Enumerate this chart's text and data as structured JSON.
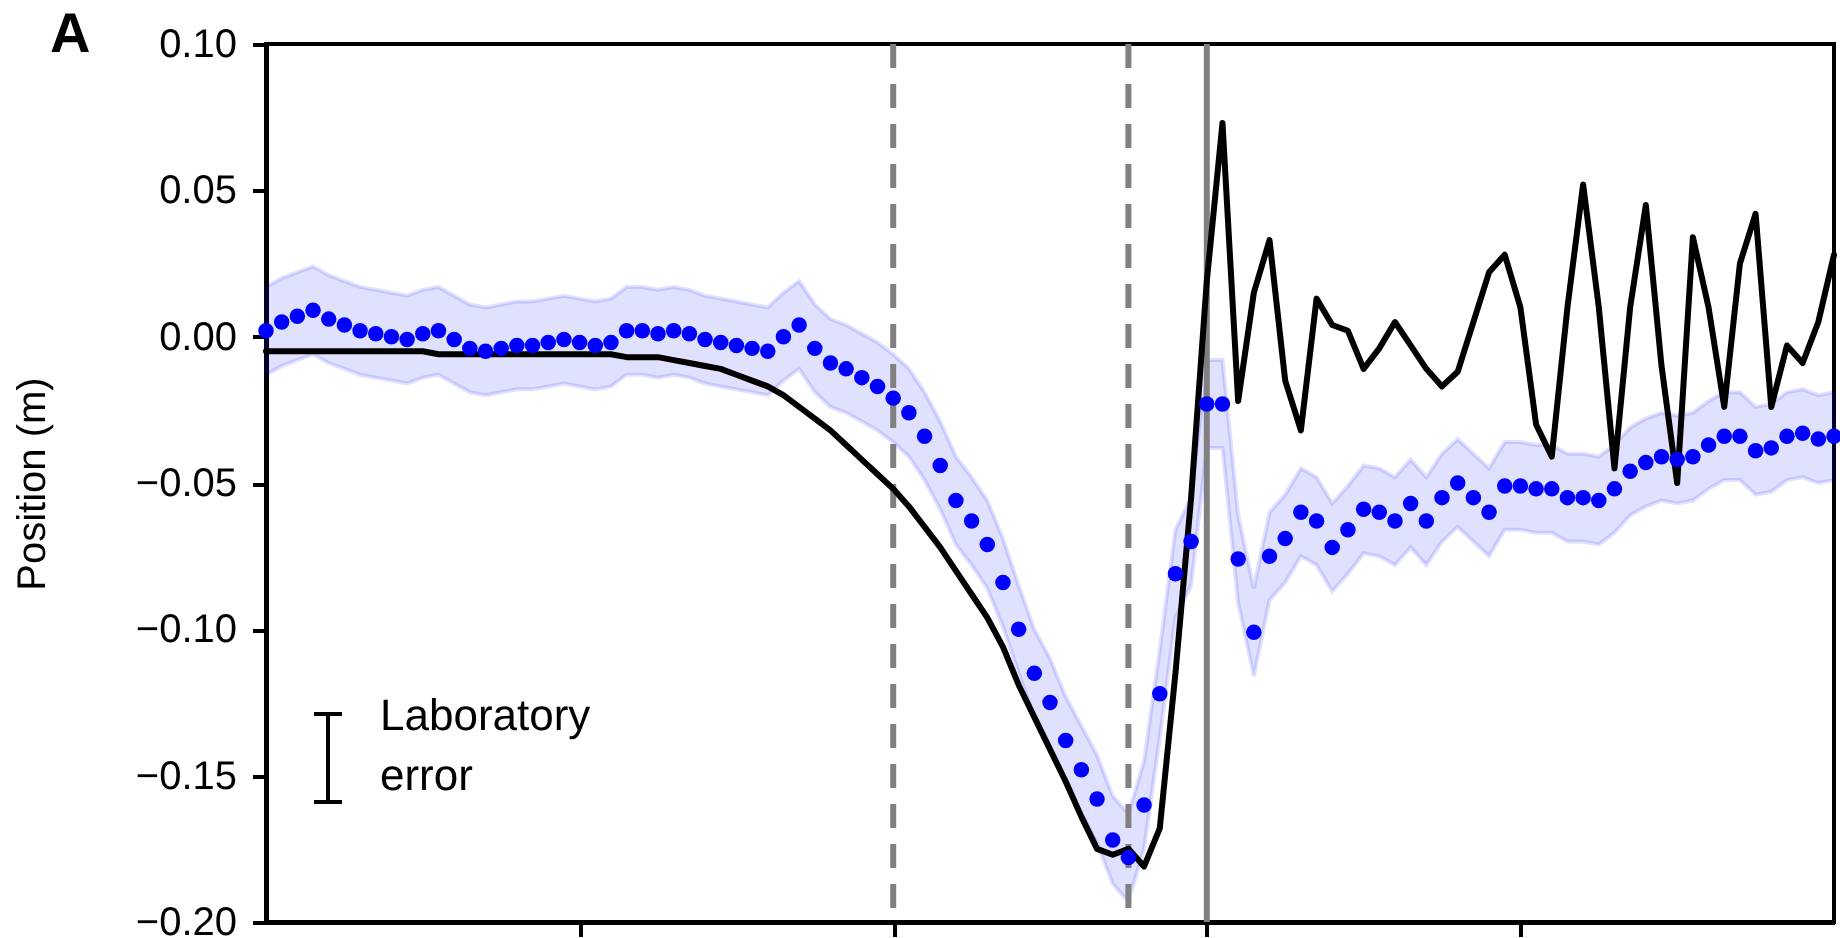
{
  "chart_data": {
    "type": "line",
    "title": "A",
    "ylabel": "Position (m)",
    "categories": [
      null,
      null,
      null,
      null,
      null,
      null,
      null,
      null,
      null,
      null,
      null,
      null,
      null,
      null,
      null,
      null,
      null,
      null,
      null,
      null,
      null,
      null,
      null,
      null,
      null,
      null,
      null,
      null,
      null,
      null,
      null,
      null,
      null,
      null,
      null,
      null,
      null,
      null,
      null,
      null,
      null,
      null,
      null,
      null,
      null,
      null,
      null,
      null,
      null,
      null,
      null,
      null,
      null,
      null,
      null,
      null,
      null,
      null,
      null,
      null,
      null,
      null,
      null,
      null,
      null,
      null,
      null,
      null,
      null,
      null,
      null,
      null,
      null,
      null,
      null,
      null,
      null,
      null,
      null,
      null,
      null,
      null,
      null,
      null,
      null,
      null,
      null,
      null,
      null,
      null,
      null,
      null,
      null,
      null,
      null,
      null,
      null,
      null,
      null,
      null,
      null
    ],
    "ylim": [
      -0.2,
      0.1
    ],
    "yticks": [
      {
        "value": -0.2,
        "label": "−0.20"
      },
      {
        "value": -0.15,
        "label": "−0.15"
      },
      {
        "value": -0.1,
        "label": "−0.10"
      },
      {
        "value": -0.05,
        "label": "−0.05"
      },
      {
        "value": 0,
        "label": "0.00"
      },
      {
        "value": 0.05,
        "label": "0.05"
      },
      {
        "value": 0.1,
        "label": "0.10"
      }
    ],
    "tick_labels": "y",
    "grid": false,
    "annotations": [
      "Laboratory error"
    ],
    "series": [
      {
        "color": "#000000",
        "values": [
          -0.005,
          -0.005,
          -0.005,
          -0.005,
          -0.005,
          -0.005,
          -0.005,
          -0.005,
          -0.005,
          -0.005,
          -0.005,
          -0.006,
          -0.006,
          -0.006,
          -0.006,
          -0.006,
          -0.006,
          -0.006,
          -0.006,
          -0.006,
          -0.006,
          -0.006,
          -0.006,
          -0.007,
          -0.007,
          -0.007,
          -0.008,
          -0.009,
          -0.01,
          -0.011,
          -0.013,
          -0.015,
          -0.017,
          -0.02,
          -0.024,
          -0.028,
          -0.032,
          -0.037,
          -0.042,
          -0.047,
          -0.052,
          -0.058,
          -0.065,
          -0.072,
          -0.08,
          -0.088,
          -0.096,
          -0.106,
          -0.119,
          -0.13,
          -0.141,
          -0.152,
          -0.164,
          -0.175,
          -0.177,
          -0.175,
          -0.181,
          -0.168,
          -0.115,
          -0.055,
          0.019,
          0.073,
          -0.022,
          0.015,
          0.033,
          -0.015,
          -0.032,
          0.013,
          0.004,
          0.002,
          -0.011,
          -0.004,
          0.005,
          -0.003,
          -0.011,
          -0.017,
          -0.012,
          0.005,
          0.022,
          0.028,
          0.01,
          -0.03,
          -0.041,
          0.01,
          0.052,
          0.01,
          -0.045,
          0.01,
          0.045,
          -0.01,
          -0.05,
          0.034,
          0.01,
          -0.024,
          0.025,
          0.042,
          -0.024,
          -0.003,
          -0.009,
          0.005,
          0.028
        ]
      },
      {
        "type": "scatter",
        "color": "#0000ff",
        "marker": "circle",
        "values": [
          0.002,
          0.005,
          0.007,
          0.009,
          0.006,
          0.004,
          0.002,
          0.001,
          0.0,
          -0.001,
          0.001,
          0.002,
          -0.001,
          -0.004,
          -0.005,
          -0.004,
          -0.003,
          -0.003,
          -0.002,
          -0.001,
          -0.002,
          -0.003,
          -0.002,
          0.002,
          0.002,
          0.001,
          0.002,
          0.001,
          -0.001,
          -0.002,
          -0.003,
          -0.004,
          -0.005,
          0.0,
          0.004,
          -0.004,
          -0.009,
          -0.011,
          -0.014,
          -0.017,
          -0.021,
          -0.026,
          -0.034,
          -0.044,
          -0.056,
          -0.063,
          -0.071,
          -0.084,
          -0.1,
          -0.115,
          -0.125,
          -0.138,
          -0.148,
          -0.158,
          -0.172,
          -0.178,
          -0.16,
          -0.122,
          -0.081,
          -0.07,
          -0.023,
          -0.023,
          -0.076,
          -0.101,
          -0.075,
          -0.069,
          -0.06,
          -0.063,
          -0.072,
          -0.066,
          -0.059,
          -0.06,
          -0.063,
          -0.057,
          -0.063,
          -0.055,
          -0.05,
          -0.055,
          -0.06,
          -0.051,
          -0.051,
          -0.052,
          -0.052,
          -0.055,
          -0.055,
          -0.056,
          -0.052,
          -0.046,
          -0.043,
          -0.041,
          -0.042,
          -0.041,
          -0.037,
          -0.034,
          -0.034,
          -0.039,
          -0.038,
          -0.034,
          -0.033,
          -0.035,
          -0.034
        ],
        "lower": [
          -0.013,
          -0.01,
          -0.008,
          -0.006,
          -0.009,
          -0.011,
          -0.013,
          -0.014,
          -0.015,
          -0.016,
          -0.014,
          -0.013,
          -0.016,
          -0.019,
          -0.02,
          -0.019,
          -0.018,
          -0.018,
          -0.017,
          -0.016,
          -0.017,
          -0.018,
          -0.017,
          -0.013,
          -0.013,
          -0.014,
          -0.013,
          -0.014,
          -0.016,
          -0.017,
          -0.018,
          -0.019,
          -0.02,
          -0.015,
          -0.011,
          -0.019,
          -0.024,
          -0.026,
          -0.029,
          -0.032,
          -0.036,
          -0.041,
          -0.049,
          -0.059,
          -0.071,
          -0.078,
          -0.086,
          -0.099,
          -0.115,
          -0.13,
          -0.14,
          -0.153,
          -0.163,
          -0.173,
          -0.187,
          -0.193,
          -0.175,
          -0.137,
          -0.096,
          -0.085,
          -0.038,
          -0.038,
          -0.091,
          -0.116,
          -0.09,
          -0.084,
          -0.075,
          -0.078,
          -0.087,
          -0.081,
          -0.074,
          -0.075,
          -0.078,
          -0.072,
          -0.078,
          -0.07,
          -0.065,
          -0.07,
          -0.075,
          -0.066,
          -0.066,
          -0.067,
          -0.067,
          -0.07,
          -0.07,
          -0.071,
          -0.067,
          -0.061,
          -0.058,
          -0.056,
          -0.057,
          -0.056,
          -0.052,
          -0.049,
          -0.049,
          -0.054,
          -0.053,
          -0.049,
          -0.048,
          -0.05,
          -0.049
        ],
        "upper": [
          0.017,
          0.02,
          0.022,
          0.024,
          0.021,
          0.019,
          0.017,
          0.016,
          0.015,
          0.014,
          0.016,
          0.017,
          0.014,
          0.011,
          0.01,
          0.011,
          0.012,
          0.012,
          0.013,
          0.014,
          0.013,
          0.012,
          0.013,
          0.017,
          0.017,
          0.016,
          0.017,
          0.016,
          0.014,
          0.013,
          0.012,
          0.011,
          0.01,
          0.015,
          0.019,
          0.011,
          0.006,
          0.004,
          0.001,
          -0.002,
          -0.006,
          -0.011,
          -0.019,
          -0.029,
          -0.041,
          -0.048,
          -0.056,
          -0.069,
          -0.085,
          -0.1,
          -0.11,
          -0.123,
          -0.133,
          -0.143,
          -0.157,
          -0.163,
          -0.145,
          -0.107,
          -0.066,
          -0.055,
          -0.008,
          -0.008,
          -0.061,
          -0.086,
          -0.06,
          -0.054,
          -0.045,
          -0.048,
          -0.057,
          -0.051,
          -0.044,
          -0.045,
          -0.048,
          -0.042,
          -0.048,
          -0.04,
          -0.035,
          -0.04,
          -0.045,
          -0.036,
          -0.036,
          -0.037,
          -0.037,
          -0.04,
          -0.04,
          -0.041,
          -0.037,
          -0.031,
          -0.028,
          -0.026,
          -0.027,
          -0.026,
          -0.022,
          -0.019,
          -0.019,
          -0.024,
          -0.023,
          -0.019,
          -0.018,
          -0.02,
          -0.019
        ]
      }
    ]
  }
}
